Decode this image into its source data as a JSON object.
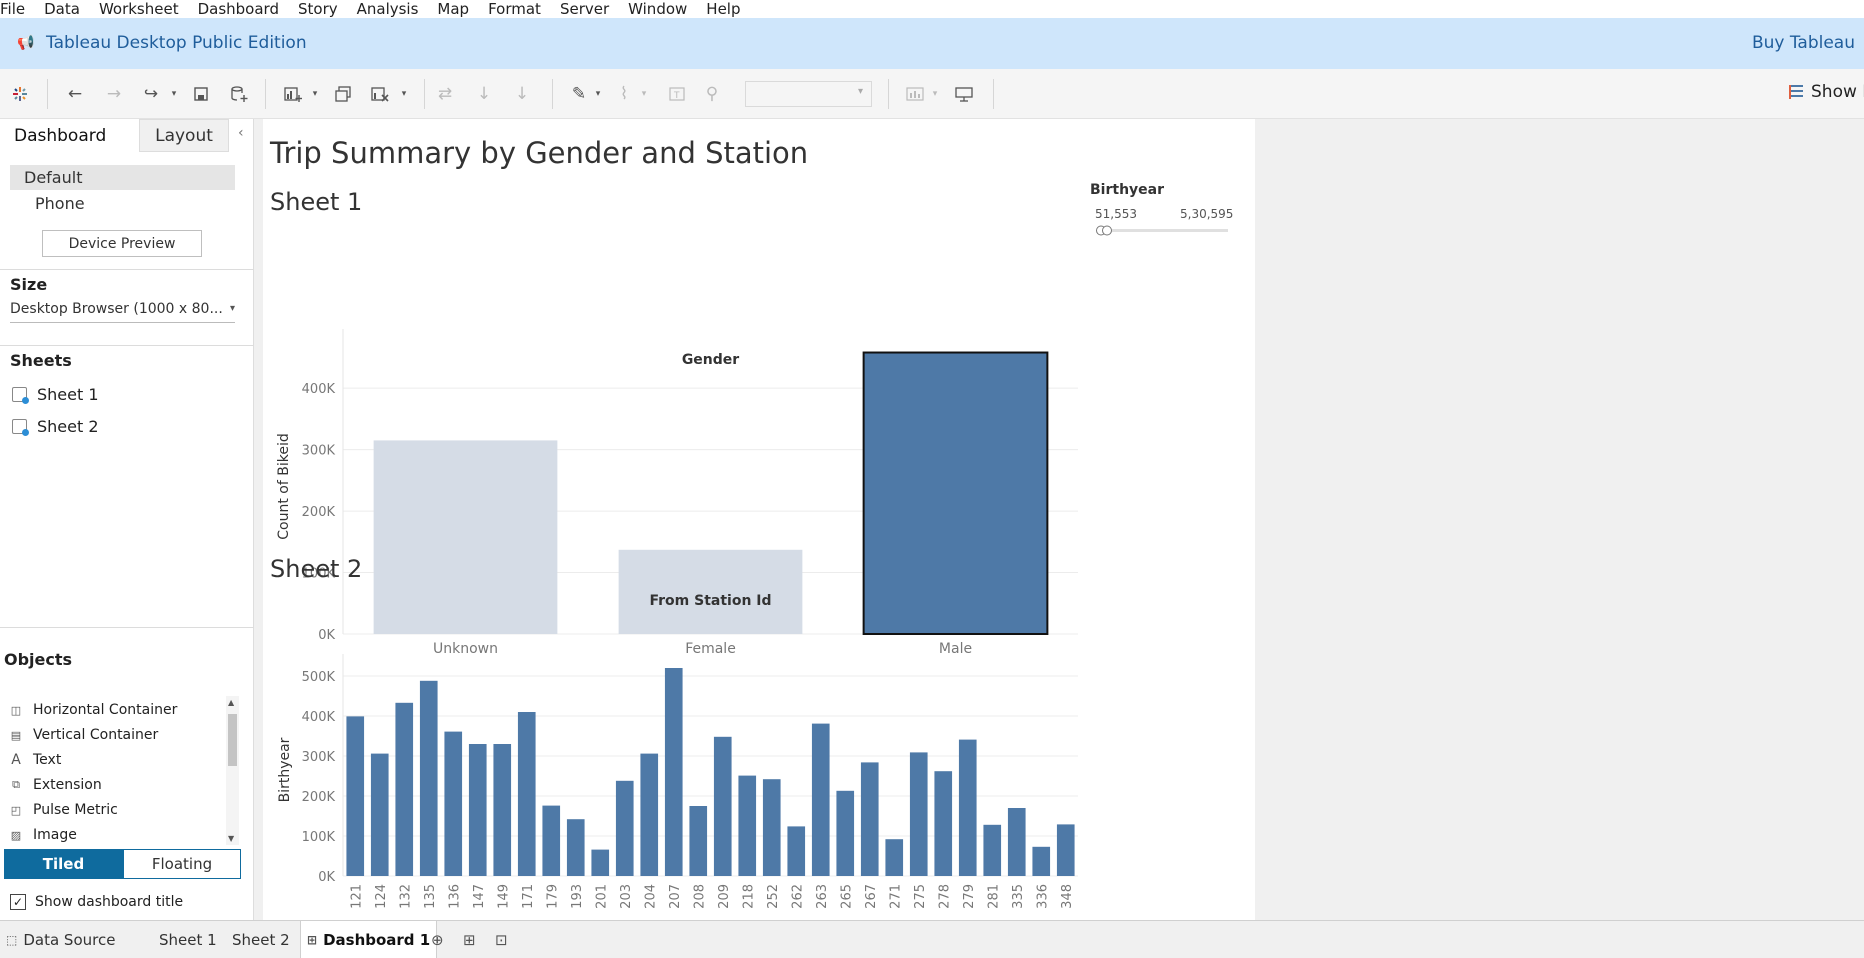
{
  "menu": [
    "File",
    "Data",
    "Worksheet",
    "Dashboard",
    "Story",
    "Analysis",
    "Map",
    "Format",
    "Server",
    "Window",
    "Help"
  ],
  "banner": {
    "title": "Tableau Desktop Public Edition",
    "buy": "Buy Tableau"
  },
  "toolbar": {
    "show_me": "Show Me"
  },
  "left": {
    "tabs": {
      "dashboard": "Dashboard",
      "layout": "Layout"
    },
    "device": {
      "default": "Default",
      "phone": "Phone",
      "preview": "Device Preview"
    },
    "size": {
      "heading": "Size",
      "value": "Desktop Browser (1000 x 80..."
    },
    "sheets": {
      "heading": "Sheets",
      "items": [
        "Sheet 1",
        "Sheet 2"
      ]
    },
    "objects": {
      "heading": "Objects",
      "items": [
        "Horizontal Container",
        "Vertical Container",
        "Text",
        "Extension",
        "Pulse Metric",
        "Image"
      ],
      "tiled": "Tiled",
      "floating": "Floating"
    },
    "show_title": "Show dashboard title"
  },
  "dashboard": {
    "title": "Trip Summary by Gender and Station",
    "sheet1_title": "Sheet 1",
    "sheet2_title": "Sheet 2",
    "filter": {
      "label": "Birthyear",
      "min": "51,553",
      "max": "5,30,595"
    }
  },
  "colors": {
    "bar": "#4e79a7",
    "bar_dim": "#d5dce6",
    "accent": "#0f6b9e",
    "banner": "#cfe6fb"
  },
  "chart_data": [
    {
      "type": "bar",
      "title": "Gender",
      "ylabel": "Count of Bikeid",
      "categories": [
        "Unknown",
        "Female",
        "Male"
      ],
      "values": [
        315000,
        137000,
        458000
      ],
      "selected": "Male",
      "yticks": [
        "0K",
        "100K",
        "200K",
        "300K",
        "400K"
      ],
      "ylim": [
        0,
        480000
      ],
      "grid": true
    },
    {
      "type": "bar",
      "title": "From Station Id",
      "ylabel": "Birthyear",
      "categories": [
        "121",
        "124",
        "132",
        "135",
        "136",
        "147",
        "149",
        "171",
        "179",
        "193",
        "201",
        "203",
        "204",
        "207",
        "208",
        "209",
        "218",
        "252",
        "262",
        "263",
        "265",
        "267",
        "271",
        "275",
        "278",
        "279",
        "281",
        "335",
        "336",
        "348"
      ],
      "values": [
        399000,
        306000,
        433000,
        488000,
        361000,
        330000,
        330000,
        410000,
        176000,
        142000,
        66000,
        238000,
        306000,
        520000,
        175000,
        348000,
        251000,
        242000,
        124000,
        381000,
        213000,
        284000,
        92000,
        309000,
        262000,
        341000,
        128000,
        170000,
        73000,
        129000
      ],
      "yticks": [
        "0K",
        "100K",
        "200K",
        "300K",
        "400K",
        "500K"
      ],
      "ylim": [
        0,
        530000
      ],
      "grid": true
    }
  ]
}
